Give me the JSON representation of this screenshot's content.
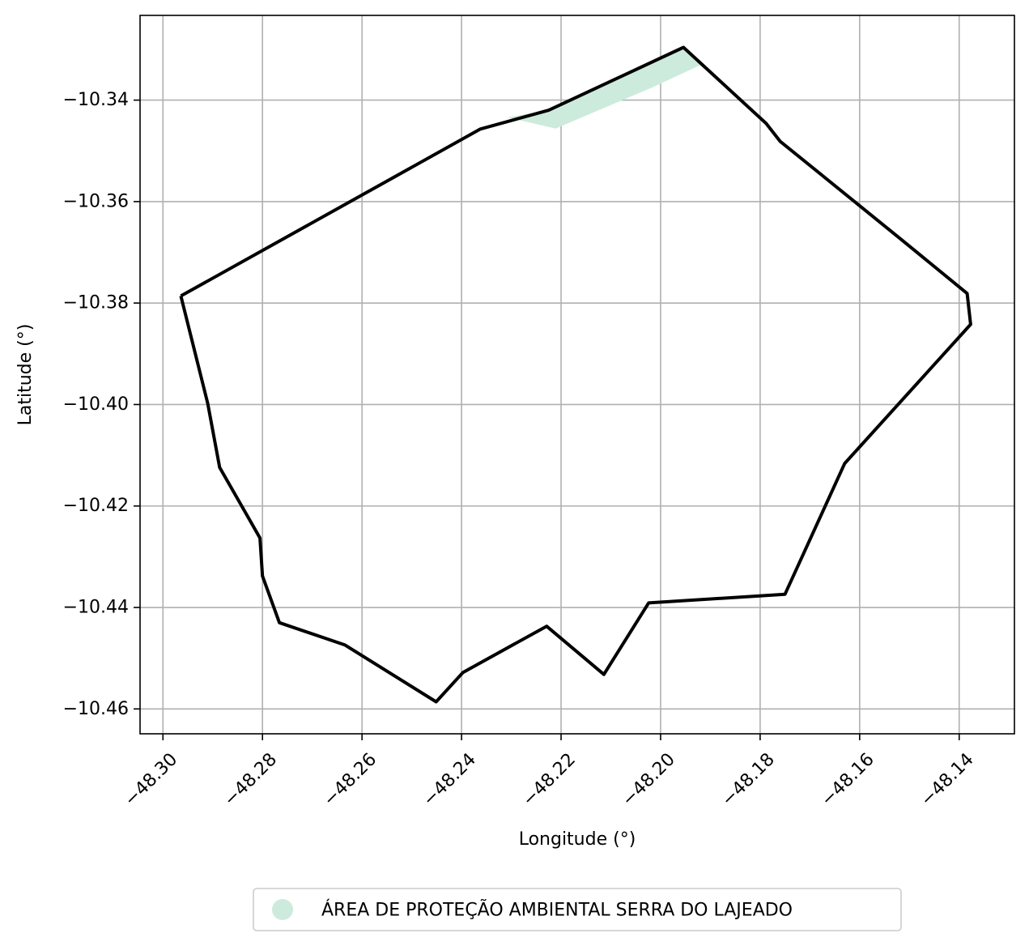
{
  "chart_data": {
    "type": "map",
    "xlabel": "Longitude (°)",
    "ylabel": "Latitude (°)",
    "xlim": [
      -48.3046,
      -48.1289
    ],
    "ylim": [
      -10.4649,
      -10.3233
    ],
    "x_ticks": [
      -48.3,
      -48.28,
      -48.26,
      -48.24,
      -48.22,
      -48.2,
      -48.18,
      -48.16,
      -48.14
    ],
    "x_tick_labels": [
      "−48.30",
      "−48.28",
      "−48.26",
      "−48.24",
      "−48.22",
      "−48.20",
      "−48.18",
      "−48.16",
      "−48.14"
    ],
    "y_ticks": [
      -10.34,
      -10.36,
      -10.38,
      -10.4,
      -10.42,
      -10.44,
      -10.46
    ],
    "y_tick_labels": [
      "−10.34",
      "−10.36",
      "−10.38",
      "−10.40",
      "−10.42",
      "−10.44",
      "−10.46"
    ],
    "grid": true,
    "boundary": {
      "color": "#000000",
      "coordinates": [
        [
          -48.2964,
          -10.3786
        ],
        [
          -48.291,
          -10.3998
        ],
        [
          -48.2886,
          -10.4124
        ],
        [
          -48.2805,
          -10.4263
        ],
        [
          -48.28,
          -10.4338
        ],
        [
          -48.2766,
          -10.443
        ],
        [
          -48.2634,
          -10.4474
        ],
        [
          -48.2451,
          -10.4586
        ],
        [
          -48.2397,
          -10.4528
        ],
        [
          -48.2229,
          -10.4437
        ],
        [
          -48.2114,
          -10.4532
        ],
        [
          -48.2024,
          -10.4391
        ],
        [
          -48.175,
          -10.4374
        ],
        [
          -48.163,
          -10.4116
        ],
        [
          -48.1377,
          -10.3842
        ],
        [
          -48.1384,
          -10.3781
        ],
        [
          -48.1516,
          -10.3675
        ],
        [
          -48.176,
          -10.3481
        ],
        [
          -48.1788,
          -10.3446
        ],
        [
          -48.1954,
          -10.3296
        ],
        [
          -48.2225,
          -10.342
        ],
        [
          -48.2362,
          -10.3457
        ],
        [
          -48.2964,
          -10.3786
        ]
      ]
    },
    "areas": [
      {
        "name": "ÁREA DE PROTEÇÃO AMBIENTAL SERRA DO LAJEADO",
        "color": "#cdebdc",
        "coordinates": [
          [
            -48.2308,
            -10.3434
          ],
          [
            -48.2225,
            -10.342
          ],
          [
            -48.1954,
            -10.3296
          ],
          [
            -48.1918,
            -10.333
          ],
          [
            -48.2017,
            -10.3375
          ],
          [
            -48.2211,
            -10.3456
          ],
          [
            -48.2308,
            -10.3434
          ]
        ]
      }
    ],
    "legend": {
      "position": "bottom-center",
      "entries": [
        "ÁREA DE PROTEÇÃO AMBIENTAL SERRA DO LAJEADO"
      ]
    }
  }
}
